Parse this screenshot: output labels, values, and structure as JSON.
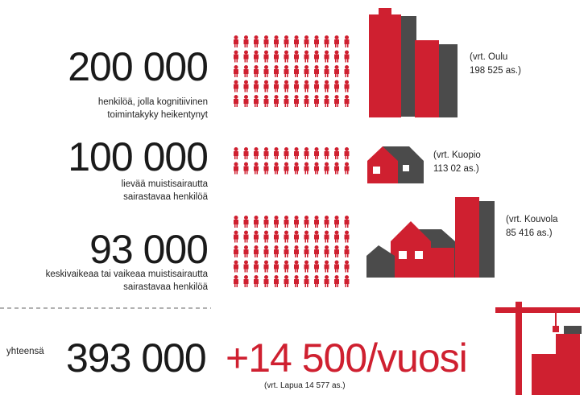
{
  "rows": [
    {
      "number": "200 000",
      "description": [
        "henkilöä, jolla kognitiivinen",
        "toimintakyky heikentynyt"
      ],
      "comparison": [
        "(vrt. Oulu",
        "198 525 as.)"
      ]
    },
    {
      "number": "100 000",
      "description": [
        "lievää muistisairautta",
        "sairastavaa henkilöä"
      ],
      "comparison": [
        "(vrt. Kuopio",
        "113 02 as.)"
      ]
    },
    {
      "number": "93 000",
      "description": [
        "keskivaikeaa tai vaikeaa muistisairautta",
        "sairastavaa henkilöä"
      ],
      "comparison": [
        "(vrt. Kouvola",
        "85 416 as.)"
      ]
    }
  ],
  "total": {
    "label": "yhteensä",
    "number": "393 000",
    "growth": "+14 500/vuosi",
    "comparison": "(vrt. Lapua 14 577 as.)"
  }
}
